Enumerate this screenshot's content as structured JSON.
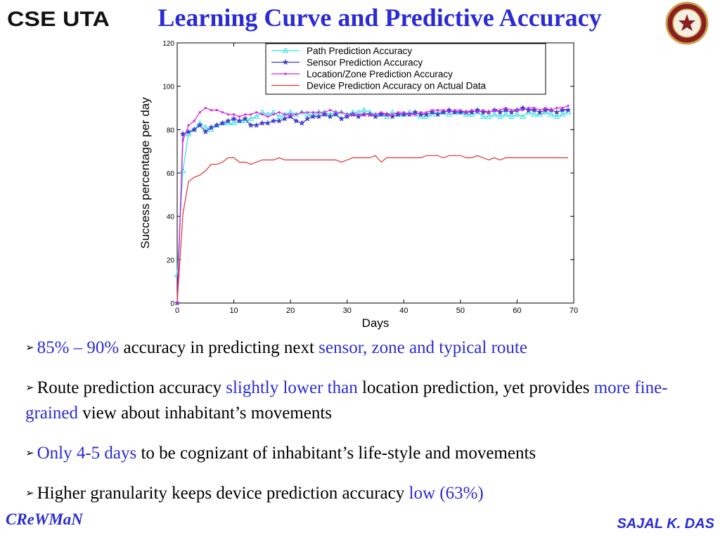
{
  "slide": {
    "title": "Learning Curve and Predictive Accuracy",
    "logo_left_text": "CSE UTA",
    "footer_left": "CReWMaN",
    "footer_right": "SAJAL K. DAS"
  },
  "bullets": [
    {
      "parts": [
        {
          "text": "85% – 90%",
          "hl": true
        },
        {
          "text": " accuracy in predicting next ",
          "hl": false
        },
        {
          "text": "sensor, zone and typical route",
          "hl": true
        }
      ]
    },
    {
      "parts": [
        {
          "text": "Route prediction accuracy ",
          "hl": false
        },
        {
          "text": "slightly lower than",
          "hl": true
        },
        {
          "text": " location prediction, yet provides ",
          "hl": false
        },
        {
          "text": "more fine-grained",
          "hl": true
        },
        {
          "text": " view about inhabitant’s movements",
          "hl": false
        }
      ]
    },
    {
      "parts": [
        {
          "text": "Only 4-5 days",
          "hl": true
        },
        {
          "text": " to be cognizant of inhabitant’s life-style and movements",
          "hl": false
        }
      ]
    },
    {
      "parts": [
        {
          "text": "Higher granularity keeps device prediction accuracy ",
          "hl": false
        },
        {
          "text": "low (63%)",
          "hl": true
        }
      ]
    }
  ],
  "chart_data": {
    "type": "line",
    "xlabel": "Days",
    "ylabel": "Success percentage per day",
    "xlim": [
      0,
      70
    ],
    "ylim": [
      0,
      120
    ],
    "xticks": [
      0,
      10,
      20,
      30,
      40,
      50,
      60,
      70
    ],
    "yticks": [
      0,
      20,
      40,
      60,
      80,
      100,
      120
    ],
    "grid": false,
    "legend": "top-center",
    "series": [
      {
        "name": "Path Prediction Accuracy",
        "color": "#33e0e0",
        "marker": "triangle",
        "x": [
          0,
          1,
          2,
          3,
          4,
          5,
          6,
          7,
          8,
          9,
          10,
          11,
          12,
          13,
          14,
          15,
          16,
          17,
          18,
          19,
          20,
          21,
          22,
          23,
          24,
          25,
          26,
          27,
          28,
          29,
          30,
          31,
          32,
          33,
          34,
          35,
          36,
          37,
          38,
          39,
          40,
          41,
          42,
          43,
          44,
          45,
          46,
          47,
          48,
          49,
          50,
          51,
          52,
          53,
          54,
          55,
          56,
          57,
          58,
          59,
          60,
          61,
          62,
          63,
          64,
          65,
          66,
          67,
          68,
          69
        ],
        "y": [
          13,
          61,
          78,
          80,
          83,
          81,
          80,
          82,
          83,
          83,
          83,
          84,
          84,
          85,
          86,
          88,
          87,
          88,
          86,
          87,
          88,
          87,
          88,
          87,
          87,
          88,
          88,
          87,
          88,
          88,
          87,
          88,
          88,
          89,
          88,
          87,
          87,
          86,
          88,
          87,
          87,
          88,
          87,
          86,
          86,
          87,
          88,
          88,
          87,
          88,
          88,
          87,
          87,
          88,
          86,
          86,
          87,
          86,
          87,
          86,
          87,
          86,
          88,
          87,
          87,
          88,
          87,
          86,
          87,
          88
        ]
      },
      {
        "name": "Sensor Prediction Accuracy",
        "color": "#4040d0",
        "marker": "star",
        "x": [
          0,
          1,
          2,
          3,
          4,
          5,
          6,
          7,
          8,
          9,
          10,
          11,
          12,
          13,
          14,
          15,
          16,
          17,
          18,
          19,
          20,
          21,
          22,
          23,
          24,
          25,
          26,
          27,
          28,
          29,
          30,
          31,
          32,
          33,
          34,
          35,
          36,
          37,
          38,
          39,
          40,
          41,
          42,
          43,
          44,
          45,
          46,
          47,
          48,
          49,
          50,
          51,
          52,
          53,
          54,
          55,
          56,
          57,
          58,
          59,
          60,
          61,
          62,
          63,
          64,
          65,
          66,
          67,
          68,
          69
        ],
        "y": [
          0,
          78,
          79,
          80,
          82,
          79,
          81,
          82,
          83,
          84,
          85,
          84,
          85,
          82,
          82,
          83,
          83,
          84,
          84,
          85,
          86,
          84,
          83,
          85,
          86,
          86,
          87,
          86,
          87,
          85,
          86,
          87,
          86,
          87,
          87,
          86,
          87,
          87,
          86,
          87,
          87,
          87,
          88,
          87,
          87,
          88,
          87,
          88,
          89,
          88,
          88,
          88,
          88,
          89,
          88,
          88,
          89,
          88,
          89,
          88,
          89,
          90,
          89,
          89,
          88,
          89,
          89,
          88,
          89,
          89
        ]
      },
      {
        "name": "Location/Zone Prediction Accuracy",
        "color": "#e020e0",
        "marker": "dot",
        "x": [
          0,
          1,
          2,
          3,
          4,
          5,
          6,
          7,
          8,
          9,
          10,
          11,
          12,
          13,
          14,
          15,
          16,
          17,
          18,
          19,
          20,
          21,
          22,
          23,
          24,
          25,
          26,
          27,
          28,
          29,
          30,
          31,
          32,
          33,
          34,
          35,
          36,
          37,
          38,
          39,
          40,
          41,
          42,
          43,
          44,
          45,
          46,
          47,
          48,
          49,
          50,
          51,
          52,
          53,
          54,
          55,
          56,
          57,
          58,
          59,
          60,
          61,
          62,
          63,
          64,
          65,
          66,
          67,
          68,
          69
        ],
        "y": [
          0,
          75,
          82,
          84,
          88,
          90,
          89,
          89,
          88,
          87,
          87,
          86,
          87,
          87,
          88,
          87,
          86,
          87,
          88,
          87,
          87,
          87,
          88,
          88,
          88,
          88,
          88,
          89,
          88,
          88,
          87,
          87,
          87,
          87,
          87,
          87,
          88,
          87,
          87,
          88,
          88,
          87,
          87,
          88,
          88,
          89,
          89,
          89,
          88,
          89,
          89,
          88,
          89,
          88,
          89,
          88,
          89,
          89,
          90,
          89,
          89,
          89,
          90,
          90,
          89,
          90,
          89,
          90,
          90,
          91
        ]
      },
      {
        "name": "Device Prediction Accuracy on Actual Data",
        "color": "#e03030",
        "marker": "none",
        "x": [
          0,
          1,
          2,
          3,
          4,
          5,
          6,
          7,
          8,
          9,
          10,
          11,
          12,
          13,
          14,
          15,
          16,
          17,
          18,
          19,
          20,
          21,
          22,
          23,
          24,
          25,
          26,
          27,
          28,
          29,
          30,
          31,
          32,
          33,
          34,
          35,
          36,
          37,
          38,
          39,
          40,
          41,
          42,
          43,
          44,
          45,
          46,
          47,
          48,
          49,
          50,
          51,
          52,
          53,
          54,
          55,
          56,
          57,
          58,
          59,
          60,
          61,
          62,
          63,
          64,
          65,
          66,
          67,
          68,
          69
        ],
        "y": [
          0,
          41,
          56,
          58,
          59,
          61,
          64,
          64,
          65,
          67,
          67,
          65,
          65,
          64,
          65,
          66,
          66,
          66,
          67,
          66,
          66,
          66,
          66,
          66,
          66,
          66,
          66,
          66,
          66,
          65,
          66,
          67,
          67,
          67,
          67,
          68,
          65,
          67,
          67,
          67,
          67,
          67,
          67,
          67,
          68,
          68,
          68,
          67,
          68,
          68,
          68,
          67,
          67,
          68,
          67,
          66,
          67,
          66,
          67,
          67,
          67,
          67,
          67,
          67,
          67,
          67,
          67,
          67,
          67,
          67
        ]
      }
    ]
  }
}
